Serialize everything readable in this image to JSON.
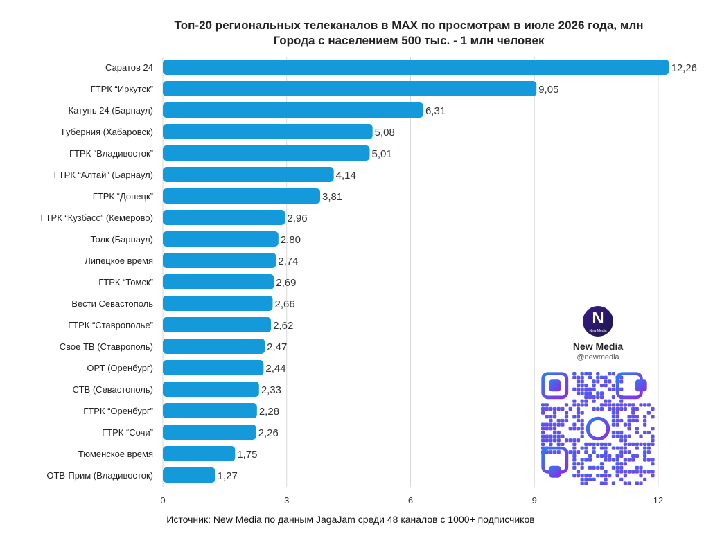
{
  "title": "Топ-20 региональных телеканалов в MAX по просмотрам в июле 2026 года, млн",
  "subtitle": "Города с населением 500 тыс. - 1 млн человек",
  "source": "Источник: New Media по данным JagaJam среди 48 каналов с 1000+ подписчиков",
  "brand": {
    "logo_caption": "New Media",
    "name": "New Media",
    "handle": "@newmedia"
  },
  "colors": {
    "bar": "#149ADB",
    "grid": "#D9D9D9",
    "qr_gradient_start": "#2D7BF4",
    "qr_gradient_end": "#8E2BE2"
  },
  "icons": [
    "new-media-logo-icon",
    "qr-code-icon"
  ],
  "chart_data": {
    "type": "bar",
    "orientation": "horizontal",
    "title": "Топ-20 региональных телеканалов в MAX по просмотрам в июле 2026 года, млн",
    "subtitle": "Города с населением 500 тыс. - 1 млн человек",
    "categories": [
      "Саратов 24",
      "ГТРК “Иркутск”",
      "Катунь 24 (Барнаул)",
      "Губерния (Хабаровск)",
      "ГТРК “Владивосток”",
      "ГТРК “Алтай” (Барнаул)",
      "ГТРК “Донецк”",
      "ГТРК “Кузбасс” (Кемерово)",
      "Толк (Барнаул)",
      "Липецкое время",
      "ГТРК “Томск”",
      "Вести Севастополь",
      "ГТРК “Ставрополье”",
      "Свое ТВ (Ставрополь)",
      "ОРТ (Оренбург)",
      "СТВ (Севастополь)",
      "ГТРК “Оренбург”",
      "ГТРК “Сочи”",
      "Тюменское время",
      "ОТВ-Прим (Владивосток)"
    ],
    "values": [
      12.26,
      9.05,
      6.31,
      5.08,
      5.01,
      4.14,
      3.81,
      2.96,
      2.8,
      2.74,
      2.69,
      2.66,
      2.62,
      2.47,
      2.44,
      2.33,
      2.28,
      2.26,
      1.75,
      1.27
    ],
    "value_labels": [
      "12,26",
      "9,05",
      "6,31",
      "5,08",
      "5,01",
      "4,14",
      "3,81",
      "2,96",
      "2,80",
      "2,74",
      "2,69",
      "2,66",
      "2,62",
      "2,47",
      "2,44",
      "2,33",
      "2,28",
      "2,26",
      "1,75",
      "1,27"
    ],
    "x_ticks": [
      0,
      3,
      6,
      9,
      12
    ],
    "xlim": [
      0,
      12
    ],
    "grid": true,
    "legend": "none"
  }
}
